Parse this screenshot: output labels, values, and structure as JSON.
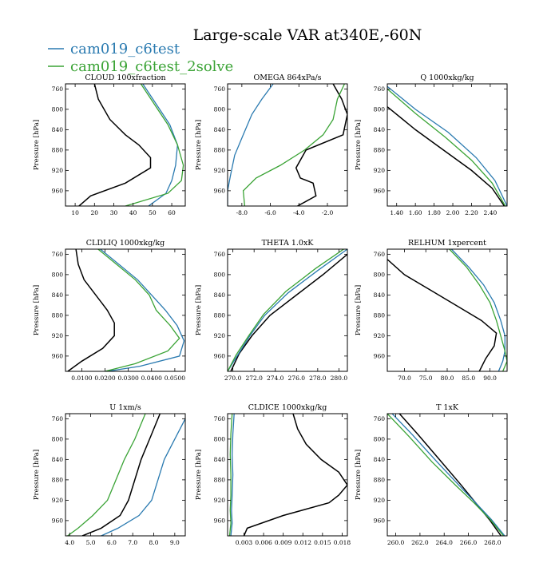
{
  "title": "Large-scale VAR at340E,-60N",
  "ylabel": "Pressure [hPa]",
  "colors": {
    "black": "#000000",
    "blue": "#2a7ab0",
    "green": "#3aa335"
  },
  "legend": [
    {
      "name": "cam019_c6test",
      "color": "#2a7ab0"
    },
    {
      "name": "cam019_c6test_2solve",
      "color": "#3aa335"
    }
  ],
  "chart_data": [
    {
      "type": "line",
      "title": "CLOUD  100xfraction",
      "xlim": [
        5,
        67
      ],
      "ylim": [
        990,
        750
      ],
      "xticks": [
        10,
        20,
        30,
        40,
        50,
        60
      ],
      "xticklabels": [
        "10",
        "20",
        "30",
        "40",
        "50",
        "60"
      ],
      "yticks": [
        760,
        800,
        840,
        880,
        920,
        960
      ],
      "yticklabels": [
        "760",
        "800",
        "840",
        "880",
        "920",
        "960"
      ],
      "series": [
        {
          "name": "black",
          "color": "#000000",
          "x": [
            20,
            22,
            28,
            36,
            43,
            49,
            49,
            36,
            18,
            12
          ],
          "y": [
            750,
            780,
            820,
            850,
            870,
            895,
            915,
            945,
            970,
            990
          ]
        },
        {
          "name": "cam019_c6test",
          "color": "#2a7ab0",
          "x": [
            45,
            52,
            59,
            63,
            62,
            60,
            57,
            48
          ],
          "y": [
            750,
            790,
            830,
            870,
            910,
            940,
            965,
            990
          ]
        },
        {
          "name": "cam019_c6test_2solve",
          "color": "#3aa335",
          "x": [
            44,
            51,
            58,
            63,
            66,
            65,
            58,
            36
          ],
          "y": [
            750,
            790,
            830,
            870,
            910,
            940,
            965,
            990
          ]
        }
      ]
    },
    {
      "type": "line",
      "title": "OMEGA  864xPa/s",
      "xlim": [
        -9,
        -0.6
      ],
      "ylim": [
        990,
        750
      ],
      "xticks": [
        -8,
        -6,
        -4,
        -2
      ],
      "xticklabels": [
        "-8.0",
        "-6.0",
        "-4.0",
        "-2.0"
      ],
      "yticks": [
        760,
        800,
        840,
        880,
        920,
        960
      ],
      "yticklabels": [
        "760",
        "800",
        "840",
        "880",
        "920",
        "960"
      ],
      "series": [
        {
          "name": "black",
          "color": "#000000",
          "x": [
            -1.6,
            -1.0,
            -0.6,
            -0.9,
            -3.5,
            -4.2,
            -3.9,
            -3.0,
            -2.8,
            -4.1
          ],
          "y": [
            750,
            780,
            810,
            850,
            880,
            915,
            935,
            945,
            970,
            990
          ]
        },
        {
          "name": "cam019_c6test",
          "color": "#2a7ab0",
          "x": [
            -5.8,
            -6.6,
            -7.3,
            -7.9,
            -8.5,
            -8.8,
            -9.0,
            -9.0
          ],
          "y": [
            750,
            780,
            810,
            850,
            890,
            930,
            960,
            990
          ]
        },
        {
          "name": "cam019_c6test_2solve",
          "color": "#3aa335",
          "x": [
            -0.8,
            -1.3,
            -1.6,
            -2.3,
            -3.6,
            -5.3,
            -7.0,
            -7.9,
            -7.8
          ],
          "y": [
            750,
            780,
            820,
            850,
            880,
            910,
            935,
            960,
            990
          ]
        }
      ]
    },
    {
      "type": "line",
      "title": "Q  1000xkg/kg",
      "xlim": [
        1.3,
        2.58
      ],
      "ylim": [
        990,
        750
      ],
      "xticks": [
        1.4,
        1.6,
        1.8,
        2.0,
        2.2,
        2.4
      ],
      "xticklabels": [
        "1.40",
        "1.60",
        "1.80",
        "2.00",
        "2.20",
        "2.40"
      ],
      "yticks": [
        760,
        800,
        840,
        880,
        920,
        960
      ],
      "yticklabels": [
        "760",
        "800",
        "840",
        "880",
        "920",
        "960"
      ],
      "series": [
        {
          "name": "black",
          "color": "#000000",
          "x": [
            1.3,
            1.6,
            1.9,
            2.2,
            2.42,
            2.55
          ],
          "y": [
            795,
            840,
            880,
            920,
            955,
            990
          ]
        },
        {
          "name": "cam019_c6test",
          "color": "#2a7ab0",
          "x": [
            1.3,
            1.6,
            1.95,
            2.25,
            2.45,
            2.58
          ],
          "y": [
            755,
            800,
            845,
            895,
            940,
            990
          ]
        },
        {
          "name": "cam019_c6test_2solve",
          "color": "#3aa335",
          "x": [
            1.3,
            1.6,
            1.92,
            2.2,
            2.42,
            2.56
          ],
          "y": [
            760,
            808,
            855,
            900,
            945,
            990
          ]
        }
      ]
    },
    {
      "type": "line",
      "title": "CLDLIQ  1000xkg/kg",
      "xlim": [
        0.003,
        0.0545
      ],
      "ylim": [
        990,
        750
      ],
      "xticks": [
        0.01,
        0.02,
        0.03,
        0.04,
        0.05
      ],
      "xticklabels": [
        "0.0100",
        "0.0200",
        "0.0300",
        "0.0400",
        "0.0500"
      ],
      "yticks": [
        760,
        800,
        840,
        880,
        920,
        960
      ],
      "yticklabels": [
        "760",
        "800",
        "840",
        "880",
        "920",
        "960"
      ],
      "series": [
        {
          "name": "black",
          "color": "#000000",
          "x": [
            0.0075,
            0.0085,
            0.011,
            0.016,
            0.021,
            0.024,
            0.024,
            0.019,
            0.01,
            0.004
          ],
          "y": [
            750,
            780,
            810,
            840,
            870,
            895,
            920,
            945,
            970,
            990
          ]
        },
        {
          "name": "cam019_c6test",
          "color": "#2a7ab0",
          "x": [
            0.018,
            0.026,
            0.034,
            0.04,
            0.046,
            0.051,
            0.054,
            0.052,
            0.035,
            0.021
          ],
          "y": [
            750,
            780,
            810,
            840,
            870,
            900,
            930,
            960,
            980,
            990
          ]
        },
        {
          "name": "cam019_c6test_2solve",
          "color": "#3aa335",
          "x": [
            0.017,
            0.025,
            0.033,
            0.039,
            0.042,
            0.048,
            0.052,
            0.047,
            0.033,
            0.02
          ],
          "y": [
            750,
            780,
            810,
            840,
            870,
            900,
            925,
            950,
            975,
            990
          ]
        }
      ]
    },
    {
      "type": "line",
      "title": "THETA  1.0xK",
      "xlim": [
        269.5,
        280.8
      ],
      "ylim": [
        990,
        750
      ],
      "xticks": [
        270,
        272,
        274,
        276,
        278,
        280
      ],
      "xticklabels": [
        "270.0",
        "272.0",
        "274.0",
        "276.0",
        "278.0",
        "280.0"
      ],
      "yticks": [
        760,
        800,
        840,
        880,
        920,
        960
      ],
      "yticklabels": [
        "760",
        "800",
        "840",
        "880",
        "920",
        "960"
      ],
      "series": [
        {
          "name": "black",
          "color": "#000000",
          "x": [
            280.8,
            278.5,
            276.0,
            273.5,
            271.8,
            270.6,
            269.8
          ],
          "y": [
            760,
            800,
            840,
            880,
            920,
            955,
            990
          ]
        },
        {
          "name": "cam019_c6test",
          "color": "#2a7ab0",
          "x": [
            280.8,
            278.0,
            275.2,
            273.0,
            271.6,
            270.4,
            269.5
          ],
          "y": [
            750,
            792,
            836,
            880,
            920,
            960,
            990
          ]
        },
        {
          "name": "cam019_c6test_2solve",
          "color": "#3aa335",
          "x": [
            280.8,
            277.8,
            275.0,
            272.9,
            271.5,
            270.3,
            269.5
          ],
          "y": [
            745,
            788,
            833,
            878,
            920,
            958,
            990
          ]
        }
      ]
    },
    {
      "type": "line",
      "title": "RELHUM  1xpercent",
      "xlim": [
        66,
        94
      ],
      "ylim": [
        990,
        750
      ],
      "xticks": [
        70,
        75,
        80,
        85,
        90
      ],
      "xticklabels": [
        "70.0",
        "75.0",
        "80.0",
        "85.0",
        "90.0"
      ],
      "yticks": [
        760,
        800,
        840,
        880,
        920,
        960
      ],
      "yticklabels": [
        "760",
        "800",
        "840",
        "880",
        "920",
        "960"
      ],
      "series": [
        {
          "name": "black",
          "color": "#000000",
          "x": [
            66,
            70,
            76,
            82,
            88,
            91.5,
            91,
            89,
            87.5
          ],
          "y": [
            770,
            800,
            830,
            860,
            890,
            915,
            940,
            965,
            990
          ]
        },
        {
          "name": "cam019_c6test",
          "color": "#2a7ab0",
          "x": [
            81,
            85,
            88.5,
            91,
            92.5,
            93.5,
            93.5,
            93,
            92
          ],
          "y": [
            750,
            785,
            820,
            855,
            890,
            920,
            950,
            970,
            990
          ]
        },
        {
          "name": "cam019_c6test_2solve",
          "color": "#3aa335",
          "x": [
            80.5,
            84.5,
            87.5,
            90,
            91.5,
            92.5,
            93.5,
            94,
            93
          ],
          "y": [
            750,
            785,
            820,
            855,
            890,
            920,
            950,
            970,
            990
          ]
        }
      ]
    },
    {
      "type": "line",
      "title": "U  1xm/s",
      "xlim": [
        3.8,
        9.5
      ],
      "ylim": [
        990,
        750
      ],
      "xticks": [
        4,
        5,
        6,
        7,
        8,
        9
      ],
      "xticklabels": [
        "4.0",
        "5.0",
        "6.0",
        "7.0",
        "8.0",
        "9.0"
      ],
      "yticks": [
        760,
        800,
        840,
        880,
        920,
        960
      ],
      "yticklabels": [
        "760",
        "800",
        "840",
        "880",
        "920",
        "960"
      ],
      "series": [
        {
          "name": "black",
          "color": "#000000",
          "x": [
            8.3,
            7.8,
            7.4,
            7.1,
            6.8,
            6.4,
            5.5,
            4.6
          ],
          "y": [
            750,
            800,
            840,
            880,
            920,
            950,
            975,
            990
          ]
        },
        {
          "name": "cam019_c6test",
          "color": "#2a7ab0",
          "x": [
            9.5,
            9.0,
            8.5,
            8.2,
            7.9,
            7.3,
            6.3,
            5.5
          ],
          "y": [
            760,
            800,
            840,
            880,
            920,
            950,
            975,
            990
          ]
        },
        {
          "name": "cam019_c6test_2solve",
          "color": "#3aa335",
          "x": [
            7.6,
            7.1,
            6.6,
            6.2,
            5.8,
            5.1,
            4.4,
            3.9
          ],
          "y": [
            750,
            800,
            840,
            880,
            920,
            950,
            975,
            990
          ]
        }
      ]
    },
    {
      "type": "line",
      "title": "CLDICE  1000xkg/kg",
      "xlim": [
        0.0005,
        0.0188
      ],
      "ylim": [
        990,
        750
      ],
      "xticks": [
        0.003,
        0.006,
        0.009,
        0.012,
        0.015,
        0.018
      ],
      "xticklabels": [
        "0.003",
        "0.006",
        "0.009",
        "0.012",
        "0.015",
        "0.018"
      ],
      "yticks": [
        760,
        800,
        840,
        880,
        920,
        960
      ],
      "yticklabels": [
        "760",
        "800",
        "840",
        "880",
        "920",
        "960"
      ],
      "series": [
        {
          "name": "black",
          "color": "#000000",
          "x": [
            0.0105,
            0.0112,
            0.0125,
            0.0148,
            0.0175,
            0.0188,
            0.0175,
            0.016,
            0.009,
            0.0035,
            0.003
          ],
          "y": [
            750,
            780,
            810,
            840,
            865,
            890,
            910,
            925,
            950,
            975,
            990
          ]
        },
        {
          "name": "cam019_c6test",
          "color": "#2a7ab0",
          "x": [
            0.0015,
            0.0013,
            0.0012,
            0.0013,
            0.0012,
            0.0011,
            0.0012,
            0.001
          ],
          "y": [
            750,
            790,
            830,
            870,
            910,
            940,
            965,
            990
          ]
        },
        {
          "name": "cam019_c6test_2solve",
          "color": "#3aa335",
          "x": [
            0.0012,
            0.001,
            0.0009,
            0.001,
            0.001,
            0.0009,
            0.001,
            0.0008
          ],
          "y": [
            750,
            790,
            830,
            870,
            910,
            940,
            965,
            990
          ]
        }
      ]
    },
    {
      "type": "line",
      "title": "T  1xK",
      "xlim": [
        259.3,
        269.2
      ],
      "ylim": [
        990,
        750
      ],
      "xticks": [
        260,
        262,
        264,
        266,
        268
      ],
      "xticklabels": [
        "260.0",
        "262.0",
        "264.0",
        "266.0",
        "268.0"
      ],
      "yticks": [
        760,
        800,
        840,
        880,
        920,
        960
      ],
      "yticklabels": [
        "760",
        "800",
        "840",
        "880",
        "920",
        "960"
      ],
      "series": [
        {
          "name": "black",
          "color": "#000000",
          "x": [
            260.3,
            261.8,
            263.6,
            265.4,
            266.6,
            267.8,
            268.7
          ],
          "y": [
            750,
            790,
            840,
            890,
            925,
            960,
            990
          ]
        },
        {
          "name": "cam019_c6test",
          "color": "#2a7ab0",
          "x": [
            259.7,
            261.4,
            263.3,
            265.2,
            266.6,
            267.9,
            269.0
          ],
          "y": [
            750,
            792,
            842,
            890,
            925,
            958,
            990
          ]
        },
        {
          "name": "cam019_c6test_2solve",
          "color": "#3aa335",
          "x": [
            259.3,
            261.1,
            263.0,
            265.0,
            266.5,
            267.8,
            268.9
          ],
          "y": [
            750,
            795,
            845,
            892,
            926,
            958,
            990
          ]
        }
      ]
    }
  ]
}
